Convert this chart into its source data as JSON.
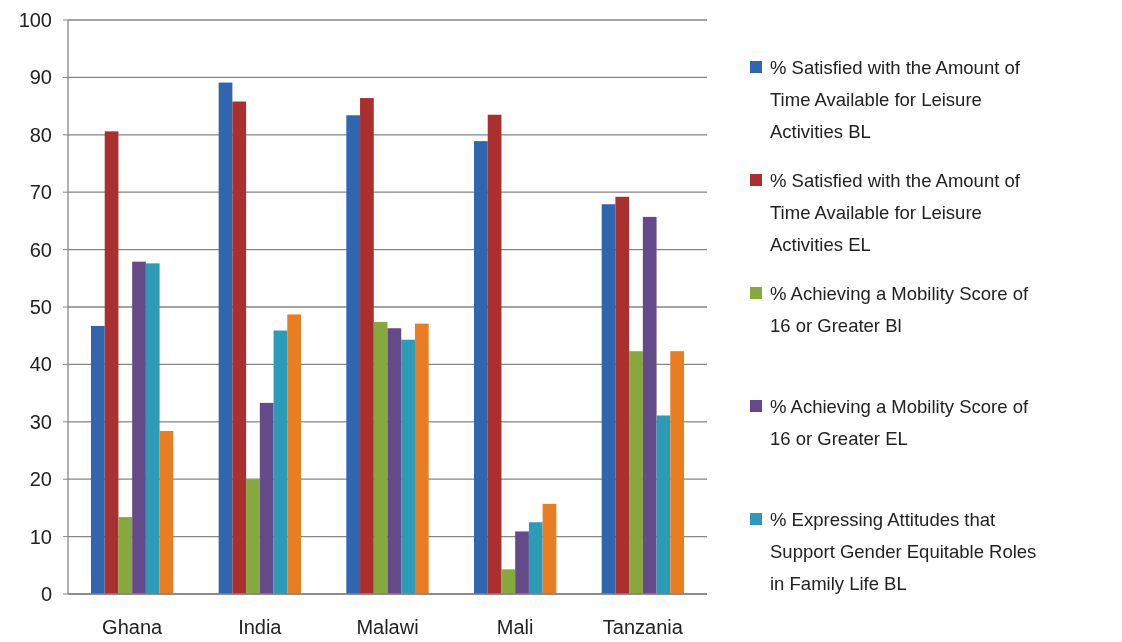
{
  "chart_data": {
    "type": "bar",
    "categories": [
      "Ghana",
      "India",
      "Malawi",
      "Mali",
      "Tanzania"
    ],
    "series": [
      {
        "name": "% Satisfied with the Amount of Time Available for Leisure Activities BL",
        "color": "#3066b0",
        "values": [
          46.7,
          89.1,
          83.4,
          78.9,
          67.9
        ]
      },
      {
        "name": "% Satisfied with the Amount of Time Available for Leisure Activities EL",
        "color": "#a9302e",
        "values": [
          80.6,
          85.8,
          86.4,
          83.5,
          69.2
        ]
      },
      {
        "name": "% Achieving a Mobility Score of 16 or Greater Bl",
        "color": "#86a83c",
        "values": [
          13.4,
          20.0,
          47.4,
          4.3,
          42.3
        ]
      },
      {
        "name": "% Achieving a Mobility Score of 16 or Greater EL",
        "color": "#654a8a",
        "values": [
          57.9,
          33.3,
          46.3,
          10.9,
          65.7
        ]
      },
      {
        "name": "% Expressing Attitudes that Support Gender Equitable Roles in Family Life BL",
        "color": "#2d9bb8",
        "values": [
          57.6,
          45.9,
          44.3,
          12.5,
          31.1
        ]
      },
      {
        "color": "#e87d22",
        "values": [
          28.4,
          48.7,
          47.1,
          15.7,
          42.3
        ]
      }
    ],
    "ylim": [
      0,
      100
    ],
    "yticks": [
      0,
      10,
      20,
      30,
      40,
      50,
      60,
      70,
      80,
      90,
      100
    ],
    "grid": "y",
    "legend": "right"
  }
}
